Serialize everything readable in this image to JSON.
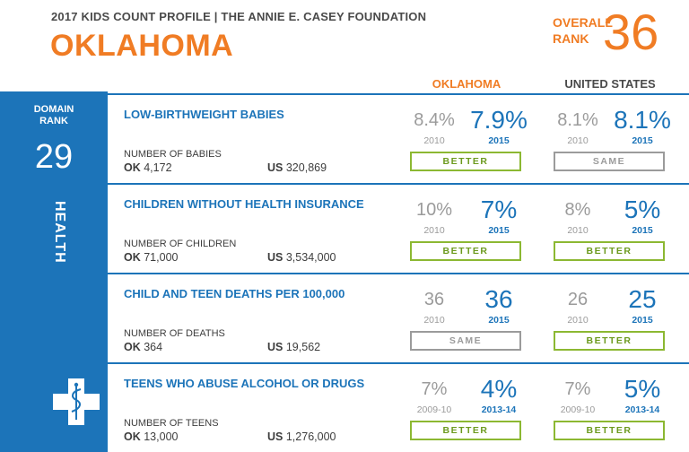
{
  "header": {
    "subtitle": "2017 KIDS COUNT PROFILE | THE ANNIE E. CASEY FOUNDATION",
    "state": "OKLAHOMA",
    "overall_label_1": "OVERALL",
    "overall_label_2": "RANK",
    "overall_rank": "36"
  },
  "columns": {
    "state": "OKLAHOMA",
    "us": "UNITED STATES"
  },
  "domain": {
    "label_1": "DOMAIN",
    "label_2": "RANK",
    "rank": "29",
    "name": "HEALTH",
    "icon": "medical-cross-icon",
    "color": "#1c74b9"
  },
  "colors": {
    "accent_orange": "#f07c24",
    "accent_blue": "#1c74b9",
    "better_green": "#8cb832",
    "same_gray": "#9b9b9b"
  },
  "rows": [
    {
      "title": "LOW-BIRTHWEIGHT BABIES",
      "count_label": "NUMBER OF BABIES",
      "ok_prefix": "OK",
      "ok_count": "4,172",
      "us_prefix": "US",
      "us_count": "320,869",
      "ok_old": "8.4%",
      "ok_old_year": "2010",
      "ok_new": "7.9%",
      "ok_new_year": "2015",
      "ok_verdict": "BETTER",
      "us_old": "8.1%",
      "us_old_year": "2010",
      "us_new": "8.1%",
      "us_new_year": "2015",
      "us_verdict": "SAME"
    },
    {
      "title": "CHILDREN WITHOUT HEALTH INSURANCE",
      "count_label": "NUMBER OF CHILDREN",
      "ok_prefix": "OK",
      "ok_count": "71,000",
      "us_prefix": "US",
      "us_count": "3,534,000",
      "ok_old": "10%",
      "ok_old_year": "2010",
      "ok_new": "7%",
      "ok_new_year": "2015",
      "ok_verdict": "BETTER",
      "us_old": "8%",
      "us_old_year": "2010",
      "us_new": "5%",
      "us_new_year": "2015",
      "us_verdict": "BETTER"
    },
    {
      "title": "CHILD AND TEEN DEATHS PER 100,000",
      "count_label": "NUMBER OF DEATHS",
      "ok_prefix": "OK",
      "ok_count": "364",
      "us_prefix": "US",
      "us_count": "19,562",
      "ok_old": "36",
      "ok_old_year": "2010",
      "ok_new": "36",
      "ok_new_year": "2015",
      "ok_verdict": "SAME",
      "us_old": "26",
      "us_old_year": "2010",
      "us_new": "25",
      "us_new_year": "2015",
      "us_verdict": "BETTER"
    },
    {
      "title": "TEENS WHO ABUSE ALCOHOL OR DRUGS",
      "count_label": "NUMBER OF TEENS",
      "ok_prefix": "OK",
      "ok_count": "13,000",
      "us_prefix": "US",
      "us_count": "1,276,000",
      "ok_old": "7%",
      "ok_old_year": "2009-10",
      "ok_new": "4%",
      "ok_new_year": "2013-14",
      "ok_verdict": "BETTER",
      "us_old": "7%",
      "us_old_year": "2009-10",
      "us_new": "5%",
      "us_new_year": "2013-14",
      "us_verdict": "BETTER"
    }
  ]
}
